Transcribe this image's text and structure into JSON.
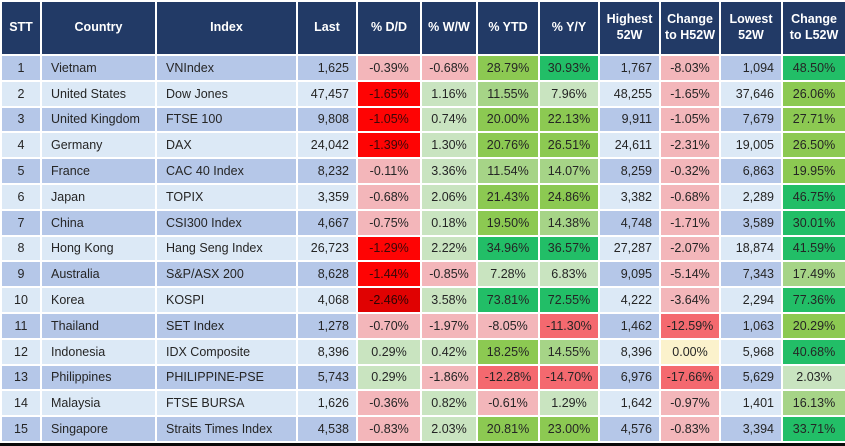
{
  "table": {
    "columns": [
      {
        "label": "STT"
      },
      {
        "label": "Country"
      },
      {
        "label": "Index"
      },
      {
        "label": "Last"
      },
      {
        "label": "% D/D"
      },
      {
        "label": "% W/W"
      },
      {
        "label": "% YTD"
      },
      {
        "label": "% Y/Y"
      },
      {
        "label": "Highest 52W"
      },
      {
        "label": "Change to H52W"
      },
      {
        "label": "Lowest 52W"
      },
      {
        "label": "Change to L52W"
      }
    ],
    "palette": {
      "header_bg": "#223A66",
      "header_text": "#FFFFFF",
      "stripe_odd": "#B5C7E8",
      "stripe_even": "#DCE9F6",
      "r1": "#F3B6BA",
      "r2": "#F4696F",
      "r3": "#FE0404",
      "r3d": "#E00202",
      "y0": "#FBF2CC",
      "g1": "#C9E4C0",
      "g2": "#A6D487",
      "g3": "#8CC952",
      "g4": "#22BE67"
    },
    "dark_red_text": {
      "r3": "#3A0909",
      "r3d": "#2C0505"
    },
    "rows": [
      {
        "stt": "1",
        "country": "Vietnam",
        "index": "VNIndex",
        "last": "1,625",
        "dd": {
          "v": "-0.39%",
          "c": "r1"
        },
        "ww": {
          "v": "-0.68%",
          "c": "r1"
        },
        "ytd": {
          "v": "28.79%",
          "c": "g3"
        },
        "yy": {
          "v": "30.93%",
          "c": "g4"
        },
        "high52": "1,767",
        "chg_h52": {
          "v": "-8.03%",
          "c": "r1"
        },
        "low52": "1,094",
        "chg_l52": {
          "v": "48.50%",
          "c": "g4"
        }
      },
      {
        "stt": "2",
        "country": "United States",
        "index": "Dow Jones",
        "last": "47,457",
        "dd": {
          "v": "-1.65%",
          "c": "r3"
        },
        "ww": {
          "v": "1.16%",
          "c": "g1"
        },
        "ytd": {
          "v": "11.55%",
          "c": "g2"
        },
        "yy": {
          "v": "7.96%",
          "c": "g1"
        },
        "high52": "48,255",
        "chg_h52": {
          "v": "-1.65%",
          "c": "r1"
        },
        "low52": "37,646",
        "chg_l52": {
          "v": "26.06%",
          "c": "g3"
        }
      },
      {
        "stt": "3",
        "country": "United Kingdom",
        "index": "FTSE 100",
        "last": "9,808",
        "dd": {
          "v": "-1.05%",
          "c": "r3"
        },
        "ww": {
          "v": "0.74%",
          "c": "g1"
        },
        "ytd": {
          "v": "20.00%",
          "c": "g3"
        },
        "yy": {
          "v": "22.13%",
          "c": "g3"
        },
        "high52": "9,911",
        "chg_h52": {
          "v": "-1.05%",
          "c": "r1"
        },
        "low52": "7,679",
        "chg_l52": {
          "v": "27.71%",
          "c": "g3"
        }
      },
      {
        "stt": "4",
        "country": "Germany",
        "index": "DAX",
        "last": "24,042",
        "dd": {
          "v": "-1.39%",
          "c": "r3"
        },
        "ww": {
          "v": "1.30%",
          "c": "g1"
        },
        "ytd": {
          "v": "20.76%",
          "c": "g3"
        },
        "yy": {
          "v": "26.51%",
          "c": "g3"
        },
        "high52": "24,611",
        "chg_h52": {
          "v": "-2.31%",
          "c": "r1"
        },
        "low52": "19,005",
        "chg_l52": {
          "v": "26.50%",
          "c": "g3"
        }
      },
      {
        "stt": "5",
        "country": "France",
        "index": "CAC 40 Index",
        "last": "8,232",
        "dd": {
          "v": "-0.11%",
          "c": "r1"
        },
        "ww": {
          "v": "3.36%",
          "c": "g1"
        },
        "ytd": {
          "v": "11.54%",
          "c": "g2"
        },
        "yy": {
          "v": "14.07%",
          "c": "g2"
        },
        "high52": "8,259",
        "chg_h52": {
          "v": "-0.32%",
          "c": "r1"
        },
        "low52": "6,863",
        "chg_l52": {
          "v": "19.95%",
          "c": "g3"
        }
      },
      {
        "stt": "6",
        "country": "Japan",
        "index": "TOPIX",
        "last": "3,359",
        "dd": {
          "v": "-0.68%",
          "c": "r1"
        },
        "ww": {
          "v": "2.06%",
          "c": "g1"
        },
        "ytd": {
          "v": "21.43%",
          "c": "g3"
        },
        "yy": {
          "v": "24.86%",
          "c": "g3"
        },
        "high52": "3,382",
        "chg_h52": {
          "v": "-0.68%",
          "c": "r1"
        },
        "low52": "2,289",
        "chg_l52": {
          "v": "46.75%",
          "c": "g4"
        }
      },
      {
        "stt": "7",
        "country": "China",
        "index": "CSI300 Index",
        "last": "4,667",
        "dd": {
          "v": "-0.75%",
          "c": "r1"
        },
        "ww": {
          "v": "0.18%",
          "c": "g1"
        },
        "ytd": {
          "v": "19.50%",
          "c": "g3"
        },
        "yy": {
          "v": "14.38%",
          "c": "g2"
        },
        "high52": "4,748",
        "chg_h52": {
          "v": "-1.71%",
          "c": "r1"
        },
        "low52": "3,589",
        "chg_l52": {
          "v": "30.01%",
          "c": "g4"
        }
      },
      {
        "stt": "8",
        "country": "Hong Kong",
        "index": "Hang Seng Index",
        "last": "26,723",
        "dd": {
          "v": "-1.29%",
          "c": "r3"
        },
        "ww": {
          "v": "2.22%",
          "c": "g1"
        },
        "ytd": {
          "v": "34.96%",
          "c": "g4"
        },
        "yy": {
          "v": "36.57%",
          "c": "g4"
        },
        "high52": "27,287",
        "chg_h52": {
          "v": "-2.07%",
          "c": "r1"
        },
        "low52": "18,874",
        "chg_l52": {
          "v": "41.59%",
          "c": "g4"
        }
      },
      {
        "stt": "9",
        "country": "Australia",
        "index": "S&P/ASX 200",
        "last": "8,628",
        "dd": {
          "v": "-1.44%",
          "c": "r3"
        },
        "ww": {
          "v": "-0.85%",
          "c": "r1"
        },
        "ytd": {
          "v": "7.28%",
          "c": "g1"
        },
        "yy": {
          "v": "6.83%",
          "c": "g1"
        },
        "high52": "9,095",
        "chg_h52": {
          "v": "-5.14%",
          "c": "r1"
        },
        "low52": "7,343",
        "chg_l52": {
          "v": "17.49%",
          "c": "g2"
        }
      },
      {
        "stt": "10",
        "country": "Korea",
        "index": "KOSPI",
        "last": "4,068",
        "dd": {
          "v": "-2.46%",
          "c": "r3d"
        },
        "ww": {
          "v": "3.58%",
          "c": "g1"
        },
        "ytd": {
          "v": "73.81%",
          "c": "g4"
        },
        "yy": {
          "v": "72.55%",
          "c": "g4"
        },
        "high52": "4,222",
        "chg_h52": {
          "v": "-3.64%",
          "c": "r1"
        },
        "low52": "2,294",
        "chg_l52": {
          "v": "77.36%",
          "c": "g4"
        }
      },
      {
        "stt": "11",
        "country": "Thailand",
        "index": "SET Index",
        "last": "1,278",
        "dd": {
          "v": "-0.70%",
          "c": "r1"
        },
        "ww": {
          "v": "-1.97%",
          "c": "r1"
        },
        "ytd": {
          "v": "-8.05%",
          "c": "r1"
        },
        "yy": {
          "v": "-11.30%",
          "c": "r2"
        },
        "high52": "1,462",
        "chg_h52": {
          "v": "-12.59%",
          "c": "r2"
        },
        "low52": "1,063",
        "chg_l52": {
          "v": "20.29%",
          "c": "g3"
        }
      },
      {
        "stt": "12",
        "country": "Indonesia",
        "index": "IDX Composite",
        "last": "8,396",
        "dd": {
          "v": "0.29%",
          "c": "g1"
        },
        "ww": {
          "v": "0.42%",
          "c": "g1"
        },
        "ytd": {
          "v": "18.25%",
          "c": "g3"
        },
        "yy": {
          "v": "14.55%",
          "c": "g2"
        },
        "high52": "8,396",
        "chg_h52": {
          "v": "0.00%",
          "c": "y0"
        },
        "low52": "5,968",
        "chg_l52": {
          "v": "40.68%",
          "c": "g4"
        }
      },
      {
        "stt": "13",
        "country": "Philippines",
        "index": "PHILIPPINE-PSE",
        "last": "5,743",
        "dd": {
          "v": "0.29%",
          "c": "g1"
        },
        "ww": {
          "v": "-1.86%",
          "c": "r1"
        },
        "ytd": {
          "v": "-12.28%",
          "c": "r2"
        },
        "yy": {
          "v": "-14.70%",
          "c": "r2"
        },
        "high52": "6,976",
        "chg_h52": {
          "v": "-17.66%",
          "c": "r2"
        },
        "low52": "5,629",
        "chg_l52": {
          "v": "2.03%",
          "c": "g1"
        }
      },
      {
        "stt": "14",
        "country": "Malaysia",
        "index": "FTSE BURSA",
        "last": "1,626",
        "dd": {
          "v": "-0.36%",
          "c": "r1"
        },
        "ww": {
          "v": "0.82%",
          "c": "g1"
        },
        "ytd": {
          "v": "-0.61%",
          "c": "r1"
        },
        "yy": {
          "v": "1.29%",
          "c": "g1"
        },
        "high52": "1,642",
        "chg_h52": {
          "v": "-0.97%",
          "c": "r1"
        },
        "low52": "1,401",
        "chg_l52": {
          "v": "16.13%",
          "c": "g2"
        }
      },
      {
        "stt": "15",
        "country": "Singapore",
        "index": "Straits Times Index",
        "last": "4,538",
        "dd": {
          "v": "-0.83%",
          "c": "r1"
        },
        "ww": {
          "v": "2.03%",
          "c": "g1"
        },
        "ytd": {
          "v": "20.81%",
          "c": "g3"
        },
        "yy": {
          "v": "23.00%",
          "c": "g3"
        },
        "high52": "4,576",
        "chg_h52": {
          "v": "-0.83%",
          "c": "r1"
        },
        "low52": "3,394",
        "chg_l52": {
          "v": "33.71%",
          "c": "g4"
        }
      }
    ]
  }
}
